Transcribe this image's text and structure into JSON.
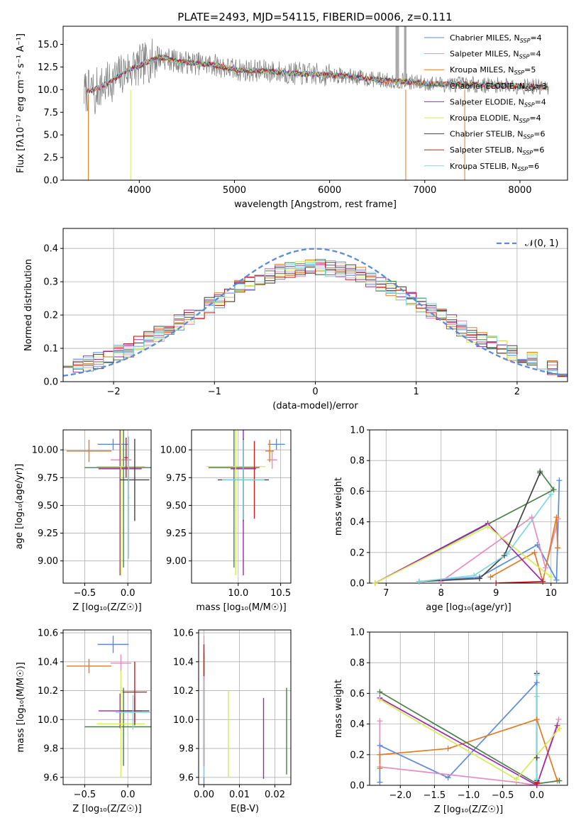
{
  "title": "PLATE=2493, MJD=54115, FIBERID=0006, z=0.111",
  "colors": {
    "Chabrier MILES": "#5b8bd9",
    "Salpeter MILES": "#e88bc0",
    "Kroupa MILES": "#e07b24",
    "Chabrier ELODIE": "#4a7f4a",
    "Salpeter ELODIE": "#9c2aa8",
    "Kroupa ELODIE": "#d6ea5a",
    "Chabrier STELIB": "#444444",
    "Salpeter STELIB": "#c41d1d",
    "Kroupa STELIB": "#7fd6e0",
    "normal": "#5b8bd9"
  },
  "chart_data": [
    {
      "id": "spectrum",
      "type": "line",
      "xlabel": "wavelength [Angstrom, rest frame]",
      "ylabel": "Flux [f_λ 10^-17 erg cm^-2 s^-1 A^-1]",
      "xlim": [
        3200,
        8500
      ],
      "ylim": [
        0,
        17
      ],
      "xticks": [
        4000,
        5000,
        6000,
        7000,
        8000
      ],
      "yticks": [
        0.0,
        2.5,
        5.0,
        7.5,
        10.0,
        12.5,
        15.0
      ],
      "legend_position": "top-right",
      "data": {
        "x": [
          3450,
          3600,
          3700,
          3800,
          3900,
          4000,
          4100,
          4200,
          4300,
          4400,
          4600,
          4800,
          5000,
          5200,
          5400,
          5600,
          5800,
          6000,
          6200,
          6400,
          6600,
          6800,
          7000,
          7200,
          7400,
          7600,
          7800,
          8000,
          8200,
          8300
        ],
        "y": [
          9.8,
          10.3,
          10.9,
          11.6,
          12.3,
          12.6,
          13.1,
          13.6,
          13.4,
          13.1,
          12.9,
          12.7,
          12.2,
          12.1,
          12.0,
          11.8,
          11.7,
          11.6,
          11.5,
          11.2,
          11.0,
          10.9,
          10.7,
          10.6,
          10.6,
          10.5,
          10.5,
          10.4,
          10.3,
          10.2
        ]
      },
      "series": [
        {
          "name": "Chabrier MILES, N_SSP=4",
          "min_x": 3450
        },
        {
          "name": "Salpeter MILES, N_SSP=4",
          "min_x": 3450
        },
        {
          "name": "Kroupa MILES, N_SSP=5",
          "min_x": 3450
        },
        {
          "name": "Chabrier ELODIE, N_SSP=3",
          "min_x": 3900
        },
        {
          "name": "Salpeter ELODIE, N_SSP=4",
          "min_x": 3900
        },
        {
          "name": "Kroupa ELODIE, N_SSP=4",
          "min_x": 3900
        },
        {
          "name": "Chabrier STELIB, N_SSP=6",
          "min_x": 3450
        },
        {
          "name": "Salpeter STELIB, N_SSP=6",
          "min_x": 3450
        },
        {
          "name": "Kroupa STELIB, N_SSP=6",
          "min_x": 3450
        }
      ]
    },
    {
      "id": "residuals",
      "type": "line",
      "xlabel": "(data-model)/error",
      "ylabel": "Normed distribution",
      "xlim": [
        -2.5,
        2.5
      ],
      "ylim": [
        0,
        0.46
      ],
      "xticks": [
        -2,
        -1,
        0,
        1,
        2
      ],
      "yticks": [
        0.0,
        0.1,
        0.2,
        0.3,
        0.4
      ],
      "grid": true,
      "legend_position": "top-right",
      "reference": {
        "name": "𝒩(0, 1)",
        "mean": 0,
        "sigma": 1
      },
      "bin_width": 0.1
    },
    {
      "id": "age_vs_Z",
      "type": "scatter",
      "xlabel": "Z [log10(Z/Z☉)]",
      "ylabel": "age [log10(age/yr)]",
      "xlim": [
        -0.75,
        0.27
      ],
      "ylim": [
        8.8,
        10.18
      ],
      "xticks": [
        -0.5,
        0.0
      ],
      "yticks": [
        9.0,
        9.25,
        9.5,
        9.75,
        10.0
      ],
      "grid": true,
      "points": [
        {
          "series": "Chabrier MILES",
          "x": -0.17,
          "xerr": 0.18,
          "y": 10.05,
          "yerr": 0.05
        },
        {
          "series": "Salpeter MILES",
          "x": -0.08,
          "xerr": 0.12,
          "y": 9.91,
          "yerr": 0.08
        },
        {
          "series": "Kroupa MILES",
          "x": -0.45,
          "xerr": 0.26,
          "y": 9.99,
          "yerr": 0.1
        },
        {
          "series": "Chabrier ELODIE",
          "x": -0.05,
          "xerr": 0.45,
          "y": 9.84,
          "yerr": 0.9
        },
        {
          "series": "Salpeter ELODIE",
          "x": -0.09,
          "xerr": 0.25,
          "y": 9.83,
          "yerr": 0.96
        },
        {
          "series": "Kroupa ELODIE",
          "x": -0.08,
          "xerr": 0.28,
          "y": 9.85,
          "yerr": 0.98
        },
        {
          "series": "Chabrier STELIB",
          "x": 0.08,
          "xerr": 0.17,
          "y": 9.73,
          "yerr": 0.37
        },
        {
          "series": "Salpeter STELIB",
          "x": -0.02,
          "xerr": 0.02,
          "y": 9.93,
          "yerr": 0.18
        },
        {
          "series": "Kroupa STELIB",
          "x": 0.01,
          "xerr": 0.01,
          "y": 9.57,
          "yerr": 0.55
        }
      ]
    },
    {
      "id": "age_vs_mass",
      "type": "scatter",
      "xlabel": "mass [log10(M/M☉)]",
      "ylabel": "",
      "xlim": [
        9.45,
        10.62
      ],
      "ylim": [
        8.8,
        10.18
      ],
      "xticks": [
        10.0,
        10.5
      ],
      "yticks": [
        9.0,
        9.25,
        9.5,
        9.75,
        10.0
      ],
      "grid": true,
      "points": [
        {
          "series": "Chabrier MILES",
          "x": 10.45,
          "xerr": 0.1,
          "y": 10.05,
          "yerr": 0.05
        },
        {
          "series": "Salpeter MILES",
          "x": 10.4,
          "xerr": 0.06,
          "y": 9.91,
          "yerr": 0.08
        },
        {
          "series": "Kroupa MILES",
          "x": 10.37,
          "xerr": 0.05,
          "y": 9.99,
          "yerr": 0.1
        },
        {
          "series": "Chabrier ELODIE",
          "x": 9.95,
          "xerr": 0.3,
          "y": 9.84,
          "yerr": 0.9
        },
        {
          "series": "Salpeter ELODIE",
          "x": 10.06,
          "xerr": 0.15,
          "y": 9.83,
          "yerr": 0.96
        },
        {
          "series": "Kroupa ELODIE",
          "x": 9.97,
          "xerr": 0.35,
          "y": 9.85,
          "yerr": 0.98
        },
        {
          "series": "Chabrier STELIB",
          "x": 10.06,
          "xerr": 0.3,
          "y": 9.73,
          "yerr": 0.37
        },
        {
          "series": "Salpeter STELIB",
          "x": 10.19,
          "xerr": 0.01,
          "y": 9.73,
          "yerr": 0.35
        },
        {
          "series": "Kroupa STELIB",
          "x": 10.06,
          "xerr": 0.25,
          "y": 9.73,
          "yerr": 0.36
        }
      ]
    },
    {
      "id": "weight_vs_age",
      "type": "line",
      "xlabel": "age [log10(age/yr)]",
      "ylabel": "mass weight",
      "xlim": [
        6.7,
        10.3
      ],
      "ylim": [
        0,
        1
      ],
      "xticks": [
        7,
        8,
        9,
        10
      ],
      "yticks": [
        0.0,
        0.2,
        0.4,
        0.6,
        0.8,
        1.0
      ],
      "grid": true,
      "series": [
        {
          "name": "Chabrier MILES",
          "x": [
            7.6,
            8.7,
            9.75,
            10.1,
            10.15
          ],
          "y": [
            0.01,
            0.04,
            0.25,
            0.02,
            0.67
          ]
        },
        {
          "name": "Salpeter MILES",
          "x": [
            8.0,
            9.65,
            9.9,
            10.13
          ],
          "y": [
            0.01,
            0.43,
            0.1,
            0.42
          ]
        },
        {
          "name": "Kroupa MILES",
          "x": [
            8.9,
            9.7,
            9.85,
            10.1,
            10.12
          ],
          "y": [
            0.04,
            0.2,
            0.01,
            0.43,
            0.23
          ]
        },
        {
          "name": "Chabrier ELODIE",
          "x": [
            6.8,
            10.05,
            9.8
          ],
          "y": [
            0.0,
            0.61,
            0.73
          ]
        },
        {
          "name": "Salpeter ELODIE",
          "x": [
            6.8,
            8.85,
            9.85
          ],
          "y": [
            0.0,
            0.39,
            0.01
          ]
        },
        {
          "name": "Kroupa ELODIE",
          "x": [
            6.8,
            8.85,
            10.0
          ],
          "y": [
            0.0,
            0.37,
            0.04
          ]
        },
        {
          "name": "Chabrier STELIB",
          "x": [
            7.6,
            8.7,
            9.15,
            9.8
          ],
          "y": [
            0.01,
            0.03,
            0.18,
            0.72
          ]
        },
        {
          "name": "Salpeter STELIB",
          "x": [
            9.0,
            9.85
          ],
          "y": [
            0.0,
            0.01
          ]
        },
        {
          "name": "Kroupa STELIB",
          "x": [
            7.6,
            8.6,
            9.2,
            10.0
          ],
          "y": [
            0.01,
            0.05,
            0.19,
            0.58
          ]
        }
      ]
    },
    {
      "id": "mass_vs_Z",
      "type": "scatter",
      "xlabel": "Z [log10(Z/Z☉)]",
      "ylabel": "mass [log10(M/M☉)]",
      "xlim": [
        -0.75,
        0.27
      ],
      "ylim": [
        9.55,
        10.62
      ],
      "xticks": [
        -0.5,
        0.0
      ],
      "yticks": [
        9.6,
        9.8,
        10.0,
        10.2,
        10.4,
        10.6
      ],
      "grid": true,
      "points": [
        {
          "series": "Chabrier MILES",
          "x": -0.17,
          "xerr": 0.18,
          "y": 10.52,
          "yerr": 0.06
        },
        {
          "series": "Salpeter MILES",
          "x": -0.08,
          "xerr": 0.12,
          "y": 10.39,
          "yerr": 0.06
        },
        {
          "series": "Kroupa MILES",
          "x": -0.45,
          "xerr": 0.26,
          "y": 10.37,
          "yerr": 0.05
        },
        {
          "series": "Chabrier ELODIE",
          "x": -0.05,
          "xerr": 0.45,
          "y": 9.95,
          "yerr": 0.27
        },
        {
          "series": "Salpeter ELODIE",
          "x": -0.09,
          "xerr": 0.25,
          "y": 10.06,
          "yerr": 0.12
        },
        {
          "series": "Kroupa ELODIE",
          "x": -0.08,
          "xerr": 0.28,
          "y": 9.97,
          "yerr": 0.37
        },
        {
          "series": "Chabrier STELIB",
          "x": 0.08,
          "xerr": 0.17,
          "y": 10.06,
          "yerr": 0.1
        },
        {
          "series": "Salpeter STELIB",
          "x": 0.08,
          "xerr": 0.14,
          "y": 10.19,
          "yerr": 0.21
        },
        {
          "series": "Kroupa STELIB",
          "x": 0.06,
          "xerr": 0.2,
          "y": 10.05,
          "yerr": 0.12
        }
      ]
    },
    {
      "id": "mass_vs_EBV",
      "type": "scatter",
      "xlabel": "E(B-V)",
      "ylabel": "",
      "xlim": [
        -0.0015,
        0.0245
      ],
      "ylim": [
        9.55,
        10.62
      ],
      "xticks": [
        0.0,
        0.01,
        0.02
      ],
      "yticks": [
        9.6,
        9.8,
        10.0,
        10.2,
        10.4,
        10.6
      ],
      "grid": true,
      "points": [
        {
          "series": "Chabrier MILES",
          "x": 0.0,
          "y": 10.0,
          "yerr": 0.45
        },
        {
          "series": "Salpeter MILES",
          "x": 0.0,
          "y": 10.4,
          "yerr": 0.18
        },
        {
          "series": "Kroupa MILES",
          "x": 0.0,
          "y": 10.37,
          "yerr": 0.1
        },
        {
          "series": "Chabrier ELODIE",
          "x": 0.0233,
          "y": 9.92,
          "yerr": 0.3
        },
        {
          "series": "Salpeter ELODIE",
          "x": 0.0168,
          "y": 9.87,
          "yerr": 0.28
        },
        {
          "series": "Kroupa ELODIE",
          "x": 0.0069,
          "y": 9.9,
          "yerr": 0.3
        },
        {
          "series": "Chabrier STELIB",
          "x": 0.0,
          "y": 9.95,
          "yerr": 0.27
        },
        {
          "series": "Salpeter STELIB",
          "x": 0.0,
          "y": 10.1,
          "yerr": 0.42
        },
        {
          "series": "Kroupa STELIB",
          "x": 0.0,
          "y": 9.95,
          "yerr": 0.35
        }
      ]
    },
    {
      "id": "weight_vs_Z",
      "type": "line",
      "xlabel": "Z [log10(Z/Z☉)]",
      "ylabel": "mass weight",
      "xlim": [
        -2.45,
        0.45
      ],
      "ylim": [
        0,
        1
      ],
      "xticks": [
        -2.0,
        -1.5,
        -1.0,
        -0.5,
        0.0
      ],
      "yticks": [
        0.0,
        0.2,
        0.4,
        0.6,
        0.8,
        1.0
      ],
      "grid": true,
      "series": [
        {
          "name": "Chabrier MILES",
          "x": [
            -2.3,
            -2.3,
            -1.3,
            0.0,
            0.0
          ],
          "y": [
            0.02,
            0.26,
            0.05,
            0.67,
            0.0
          ]
        },
        {
          "name": "Salpeter MILES",
          "x": [
            -2.3,
            -2.3,
            -0.3,
            0.0,
            0.32
          ],
          "y": [
            0.42,
            0.12,
            0.02,
            0.0,
            0.43
          ]
        },
        {
          "name": "Kroupa MILES",
          "x": [
            -2.3,
            -2.3,
            -1.3,
            0.0,
            0.3,
            0.33
          ],
          "y": [
            0.11,
            0.2,
            0.24,
            0.43,
            0.03,
            0.03
          ]
        },
        {
          "name": "Chabrier ELODIE",
          "x": [
            -2.3,
            0.0,
            0.33
          ],
          "y": [
            0.61,
            0.01,
            0.03
          ]
        },
        {
          "name": "Salpeter ELODIE",
          "x": [
            -2.3,
            0.0,
            0.3
          ],
          "y": [
            0.57,
            0.0,
            0.39
          ]
        },
        {
          "name": "Kroupa ELODIE",
          "x": [
            -2.3,
            -0.3,
            0.33
          ],
          "y": [
            0.56,
            0.04,
            0.37
          ]
        },
        {
          "name": "Chabrier STELIB",
          "x": [
            0.0,
            0.0,
            0.0
          ],
          "y": [
            0.73,
            0.18,
            0.03
          ]
        },
        {
          "name": "Salpeter STELIB",
          "x": [
            0.0,
            0.0
          ],
          "y": [
            0.01,
            0.02
          ]
        },
        {
          "name": "Kroupa STELIB",
          "x": [
            0.0,
            0.0,
            0.0
          ],
          "y": [
            0.72,
            0.58,
            0.04
          ]
        }
      ]
    }
  ]
}
